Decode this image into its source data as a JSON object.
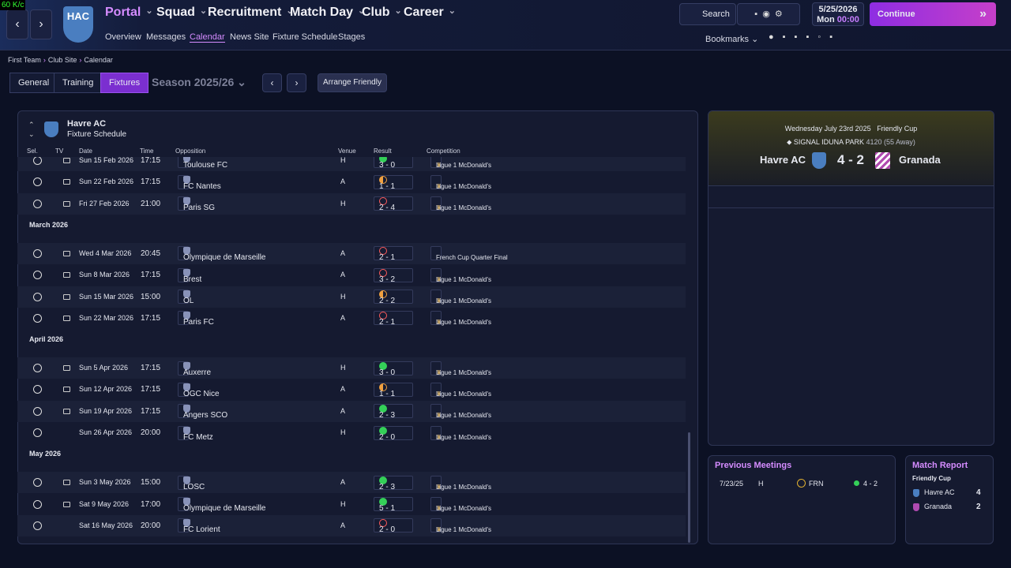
{
  "overlay": "60 K/c",
  "logo": "HAC",
  "menu": [
    "Portal",
    "Squad",
    "Recruitment",
    "Match Day",
    "Club",
    "Career"
  ],
  "submenu": [
    "Overview",
    "Messages",
    "Calendar",
    "News Site",
    "Fixture Schedule",
    "Stages"
  ],
  "toolbar": {
    "search": "Search",
    "date": "5/25/2026",
    "day": "Mon",
    "time": "00:00",
    "continue": "Continue",
    "bookmarks": "Bookmarks"
  },
  "breadcrumb": [
    "First Team",
    "Club Site",
    "Calendar"
  ],
  "tabs": [
    "General",
    "Training",
    "Fixtures"
  ],
  "season": "Season 2025/26",
  "arrange": "Arrange Friendly",
  "panel": {
    "team": "Havre AC",
    "subtitle": "Fixture Schedule",
    "columns": [
      "Sel.",
      "TV",
      "Date",
      "Time",
      "Opposition",
      "Venue",
      "Result",
      "Competition"
    ]
  },
  "groups": [
    {
      "rows": [
        {
          "date": "Sun 15 Feb 2026",
          "time": "17:15",
          "opponent": "Toulouse FC",
          "venue": "H",
          "result": "3 - 0",
          "outcome": "win",
          "tv": true,
          "competition": "Ligue 1 McDonald's"
        },
        {
          "date": "Sun 22 Feb 2026",
          "time": "17:15",
          "opponent": "FC Nantes",
          "venue": "A",
          "result": "1 - 1",
          "outcome": "draw",
          "tv": true,
          "competition": "Ligue 1 McDonald's"
        },
        {
          "date": "Fri 27 Feb 2026",
          "time": "21:00",
          "opponent": "Paris SG",
          "venue": "H",
          "result": "2 - 4",
          "outcome": "loss",
          "tv": true,
          "competition": "Ligue 1 McDonald's"
        }
      ]
    },
    {
      "label": "March 2026",
      "rows": [
        {
          "date": "Wed 4 Mar 2026",
          "time": "20:45",
          "opponent": "Olympique de Marseille",
          "venue": "A",
          "result": "2 - 1",
          "outcome": "loss",
          "tv": true,
          "competition": "French Cup Quarter Final"
        },
        {
          "date": "Sun 8 Mar 2026",
          "time": "17:15",
          "opponent": "Brest",
          "venue": "A",
          "result": "3 - 2",
          "outcome": "loss",
          "tv": true,
          "competition": "Ligue 1 McDonald's"
        },
        {
          "date": "Sun 15 Mar 2026",
          "time": "15:00",
          "opponent": "OL",
          "venue": "H",
          "result": "2 - 2",
          "outcome": "draw",
          "tv": true,
          "competition": "Ligue 1 McDonald's"
        },
        {
          "date": "Sun 22 Mar 2026",
          "time": "17:15",
          "opponent": "Paris FC",
          "venue": "A",
          "result": "2 - 1",
          "outcome": "loss",
          "tv": true,
          "competition": "Ligue 1 McDonald's"
        }
      ]
    },
    {
      "label": "April 2026",
      "rows": [
        {
          "date": "Sun 5 Apr 2026",
          "time": "17:15",
          "opponent": "Auxerre",
          "venue": "H",
          "result": "3 - 0",
          "outcome": "win",
          "tv": true,
          "competition": "Ligue 1 McDonald's"
        },
        {
          "date": "Sun 12 Apr 2026",
          "time": "17:15",
          "opponent": "OGC Nice",
          "venue": "A",
          "result": "1 - 1",
          "outcome": "draw",
          "tv": true,
          "competition": "Ligue 1 McDonald's"
        },
        {
          "date": "Sun 19 Apr 2026",
          "time": "17:15",
          "opponent": "Angers SCO",
          "venue": "A",
          "result": "2 - 3",
          "outcome": "win",
          "tv": true,
          "competition": "Ligue 1 McDonald's"
        },
        {
          "date": "Sun 26 Apr 2026",
          "time": "20:00",
          "opponent": "FC Metz",
          "venue": "H",
          "result": "2 - 0",
          "outcome": "win",
          "tv": false,
          "competition": "Ligue 1 McDonald's"
        }
      ]
    },
    {
      "label": "May 2026",
      "rows": [
        {
          "date": "Sun 3 May 2026",
          "time": "15:00",
          "opponent": "LOSC",
          "venue": "A",
          "result": "2 - 3",
          "outcome": "win",
          "tv": true,
          "competition": "Ligue 1 McDonald's"
        },
        {
          "date": "Sat 9 May 2026",
          "time": "17:00",
          "opponent": "Olympique de Marseille",
          "venue": "H",
          "result": "5 - 1",
          "outcome": "win",
          "tv": true,
          "competition": "Ligue 1 McDonald's"
        },
        {
          "date": "Sat 16 May 2026",
          "time": "20:00",
          "opponent": "FC Lorient",
          "venue": "A",
          "result": "2 - 0",
          "outcome": "loss",
          "tv": false,
          "competition": "Ligue 1 McDonald's"
        }
      ]
    }
  ],
  "match": {
    "date": "Wednesday July 23rd 2025",
    "competition": "Friendly Cup",
    "stadium": "SIGNAL IDUNA PARK",
    "attendance": "4120",
    "away": "(55 Away)",
    "home_team": "Havre AC",
    "score": "4 - 2",
    "away_team": "Granada"
  },
  "previous": {
    "title": "Previous Meetings",
    "rows": [
      {
        "date": "7/23/25",
        "venue": "H",
        "competition": "FRN",
        "result": "4 - 2"
      }
    ]
  },
  "report": {
    "title": "Match Report",
    "competition": "Friendly Cup",
    "rows": [
      {
        "team": "Havre AC",
        "goals": "4"
      },
      {
        "team": "Granada",
        "goals": "2"
      }
    ]
  }
}
